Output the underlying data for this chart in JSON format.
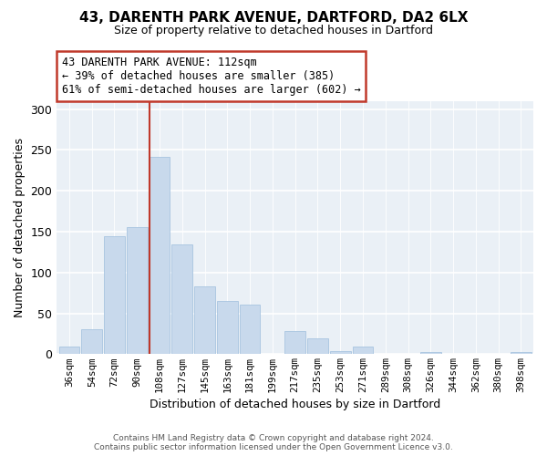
{
  "title1": "43, DARENTH PARK AVENUE, DARTFORD, DA2 6LX",
  "title2": "Size of property relative to detached houses in Dartford",
  "xlabel": "Distribution of detached houses by size in Dartford",
  "ylabel": "Number of detached properties",
  "bin_labels": [
    "36sqm",
    "54sqm",
    "72sqm",
    "90sqm",
    "108sqm",
    "127sqm",
    "145sqm",
    "163sqm",
    "181sqm",
    "199sqm",
    "217sqm",
    "235sqm",
    "253sqm",
    "271sqm",
    "289sqm",
    "308sqm",
    "326sqm",
    "344sqm",
    "362sqm",
    "380sqm",
    "398sqm"
  ],
  "bar_heights": [
    9,
    30,
    144,
    156,
    242,
    134,
    83,
    65,
    61,
    0,
    28,
    19,
    4,
    9,
    0,
    0,
    2,
    0,
    0,
    0,
    2
  ],
  "highlight_bin_index": 4,
  "bar_color": "#c8d9ec",
  "bar_edge_color": "#a8c4e0",
  "highlight_color": "#c0392b",
  "annotation_text_line1": "43 DARENTH PARK AVENUE: 112sqm",
  "annotation_text_line2": "← 39% of detached houses are smaller (385)",
  "annotation_text_line3": "61% of semi-detached houses are larger (602) →",
  "ylim": [
    0,
    310
  ],
  "yticks": [
    0,
    50,
    100,
    150,
    200,
    250,
    300
  ],
  "footer1": "Contains HM Land Registry data © Crown copyright and database right 2024.",
  "footer2": "Contains public sector information licensed under the Open Government Licence v3.0.",
  "bg_color": "#eaf0f6"
}
